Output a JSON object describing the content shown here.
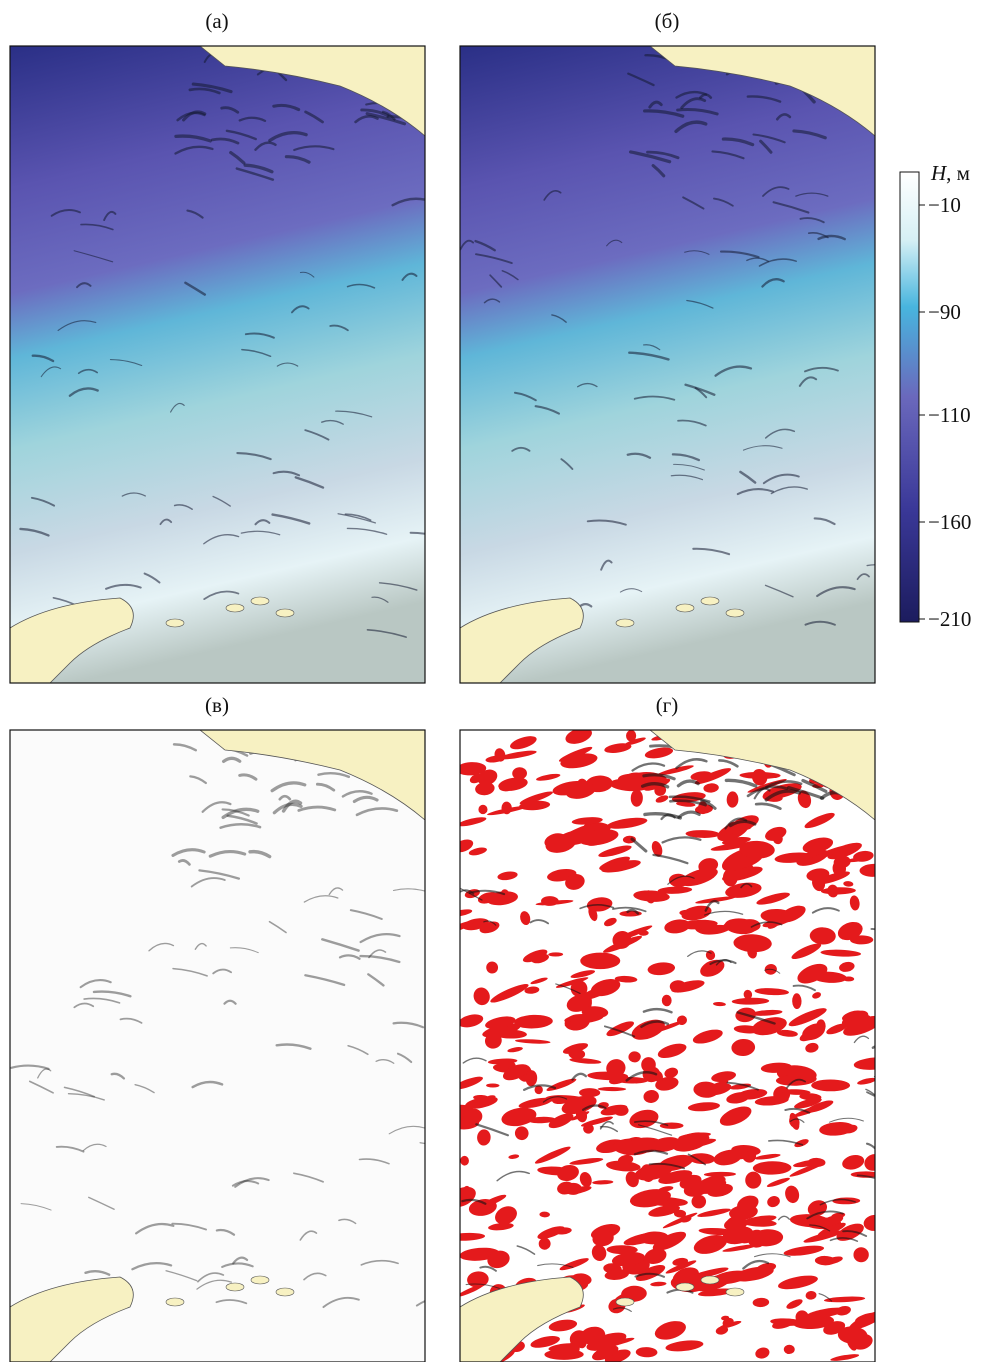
{
  "panels": [
    {
      "label": "(а)"
    },
    {
      "label": "(б)"
    },
    {
      "label": "(в)"
    },
    {
      "label": "(г)"
    }
  ],
  "colorbar": {
    "title_symbol": "H",
    "title_rest": ", м",
    "ticks": [
      "−10",
      "−90",
      "−110",
      "−160",
      "−210"
    ]
  }
}
